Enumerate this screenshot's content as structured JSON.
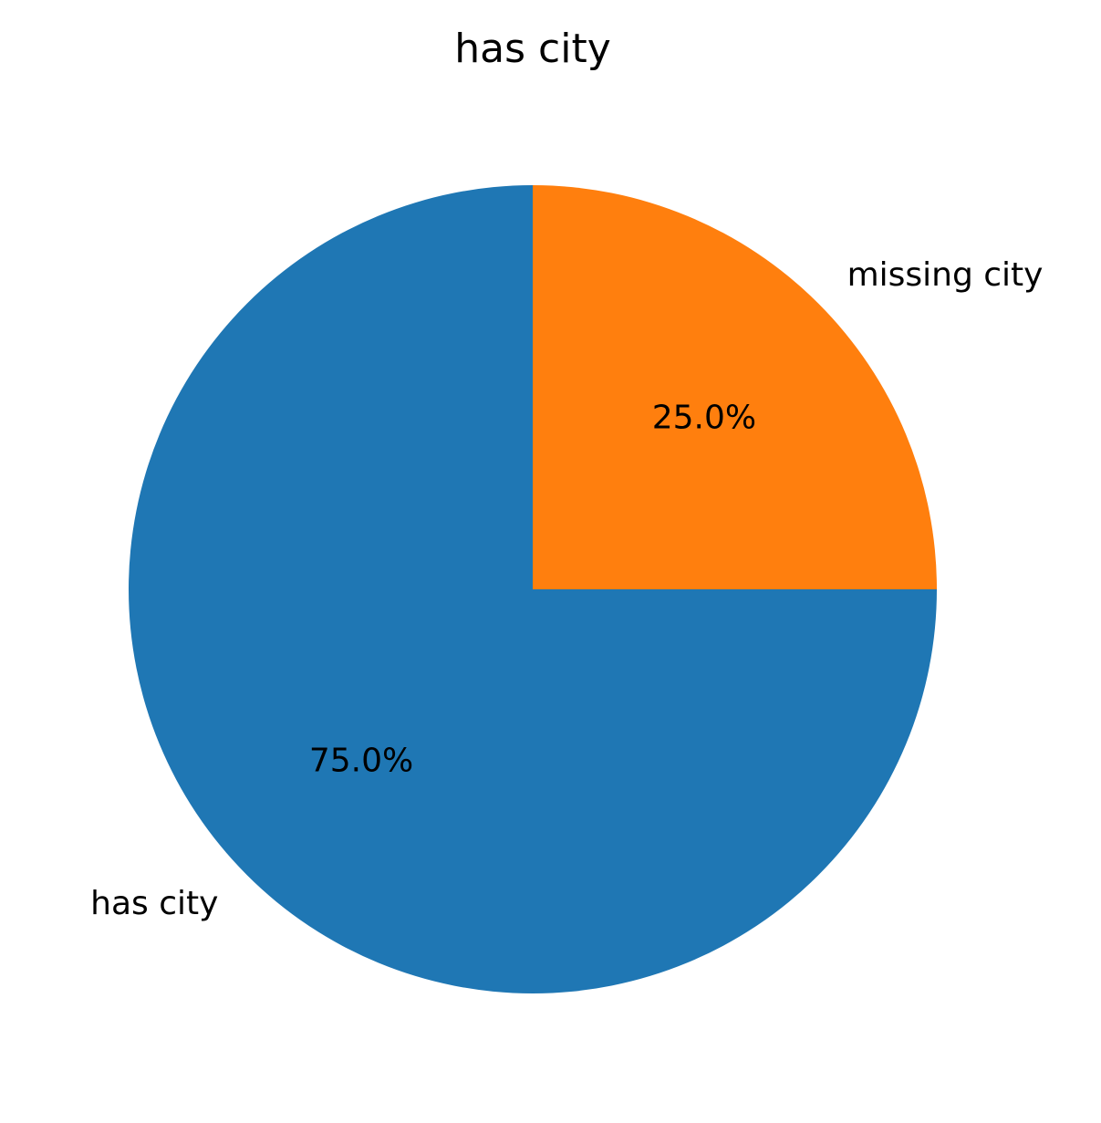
{
  "chart_data": {
    "type": "pie",
    "title": "has city",
    "slices": [
      {
        "label": "has city",
        "value": 75.0,
        "pct_label": "75.0%",
        "color": "#1f77b4"
      },
      {
        "label": "missing city",
        "value": 25.0,
        "pct_label": "25.0%",
        "color": "#ff7f0e"
      }
    ],
    "start_angle_deg": 90,
    "direction": "counterclockwise"
  }
}
